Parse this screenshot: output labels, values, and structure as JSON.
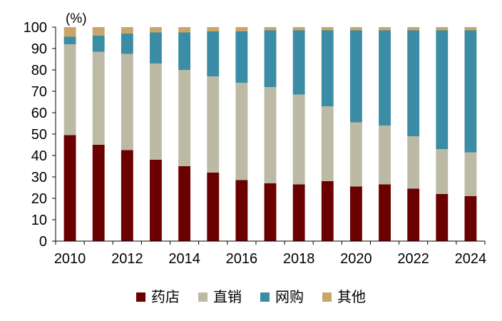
{
  "chart_data": {
    "type": "bar",
    "stacked": true,
    "unit_label": "(%)",
    "categories": [
      "2010",
      "2011",
      "2012",
      "2013",
      "2014",
      "2015",
      "2016",
      "2017",
      "2018",
      "2019",
      "2020",
      "2021",
      "2022",
      "2023",
      "2024"
    ],
    "x_tick_labels": [
      "2010",
      "2012",
      "2014",
      "2016",
      "2018",
      "2020",
      "2022",
      "2024"
    ],
    "y_ticks": [
      0,
      10,
      20,
      30,
      40,
      50,
      60,
      70,
      80,
      90,
      100
    ],
    "ylim": [
      0,
      100
    ],
    "series": [
      {
        "name": "药店",
        "color": "#6B0000",
        "values": [
          49.5,
          45.0,
          42.5,
          38.0,
          35.0,
          32.0,
          28.5,
          27.0,
          26.5,
          28.0,
          25.5,
          26.5,
          24.5,
          22.0,
          21.0
        ]
      },
      {
        "name": "直销",
        "color": "#BCBAA5",
        "values": [
          42.5,
          43.5,
          45.0,
          45.0,
          45.0,
          45.0,
          45.5,
          45.0,
          42.0,
          35.0,
          30.0,
          27.5,
          24.5,
          21.0,
          20.5
        ]
      },
      {
        "name": "网购",
        "color": "#3B8CA5",
        "values": [
          3.5,
          7.5,
          9.5,
          14.5,
          17.5,
          21.0,
          24.0,
          26.5,
          30.0,
          35.5,
          43.0,
          44.5,
          49.5,
          55.5,
          57.0
        ]
      },
      {
        "name": "其他",
        "color": "#C9A56A",
        "values": [
          4.5,
          4.0,
          3.0,
          2.5,
          2.5,
          2.0,
          2.0,
          1.5,
          1.5,
          1.5,
          1.5,
          1.5,
          1.5,
          1.5,
          1.5
        ]
      }
    ],
    "legend_position": "bottom",
    "grid": false
  }
}
